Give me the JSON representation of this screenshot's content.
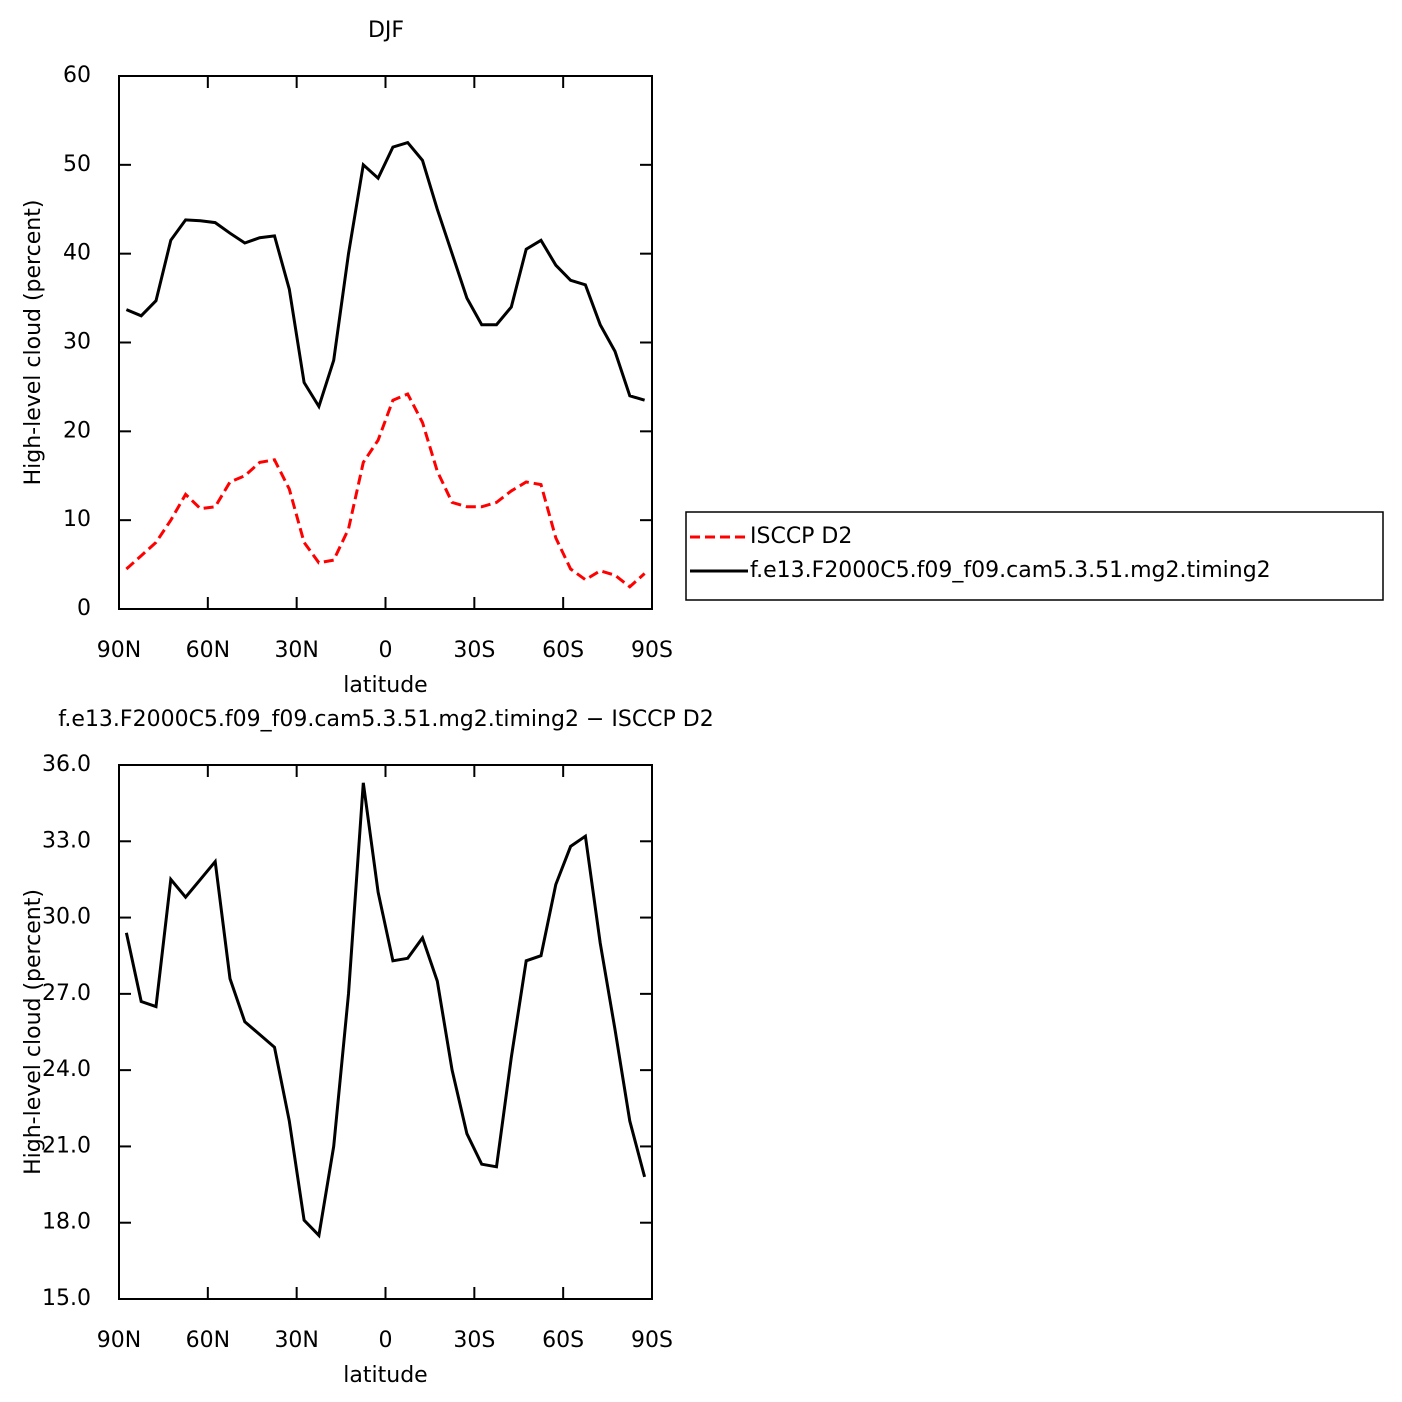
{
  "chart_data": [
    {
      "type": "line",
      "title": "DJF",
      "xlabel": "latitude",
      "ylabel": "High-level cloud (percent)",
      "x": [
        87.5,
        82.5,
        77.5,
        72.5,
        67.5,
        62.5,
        57.5,
        52.5,
        47.5,
        42.5,
        37.5,
        32.5,
        27.5,
        22.5,
        17.5,
        12.5,
        7.5,
        2.5,
        -2.5,
        -7.5,
        -12.5,
        -17.5,
        -22.5,
        -27.5,
        -32.5,
        -37.5,
        -42.5,
        -47.5,
        -52.5,
        -57.5,
        -62.5,
        -67.5,
        -72.5,
        -77.5,
        -82.5,
        -87.5
      ],
      "series": [
        {
          "name": "ISCCP D2",
          "color": "#ff0000",
          "line_style": "dashed",
          "values": [
            4.5,
            6,
            7.5,
            10,
            12.9,
            11.3,
            11.5,
            14.3,
            15,
            16.5,
            16.8,
            13.5,
            7.5,
            5.2,
            5.5,
            9,
            16.5,
            19,
            23.5,
            24.2,
            21,
            15.5,
            12,
            11.5,
            11.5,
            12,
            13.3,
            14.3,
            14,
            8,
            4.5,
            3.3,
            4.3,
            3.8,
            2.5,
            4
          ]
        },
        {
          "name": "f.e13.F2000C5.f09_f09.cam5.3.51.mg2.timing2",
          "color": "#000000",
          "line_style": "solid",
          "values": [
            33.7,
            33,
            34.7,
            41.5,
            43.8,
            43.7,
            43.5,
            42.3,
            41.2,
            41.8,
            42,
            36,
            25.5,
            22.8,
            28,
            40,
            50,
            48.5,
            52,
            52.5,
            50.5,
            45,
            40,
            35,
            32,
            32,
            34,
            40.5,
            41.5,
            38.7,
            37,
            36.5,
            32,
            29,
            24,
            23.5
          ]
        }
      ],
      "xlim": [
        90,
        -90
      ],
      "xticks": [
        {
          "value": 90,
          "label": "90N"
        },
        {
          "value": 60,
          "label": "60N"
        },
        {
          "value": 30,
          "label": "30N"
        },
        0,
        {
          "value": -30,
          "label": "30S"
        },
        {
          "value": -60,
          "label": "60S"
        },
        {
          "value": -90,
          "label": "90S"
        }
      ],
      "ylim": [
        0,
        60
      ],
      "yticks": [
        0,
        10,
        20,
        30,
        40,
        50,
        60
      ],
      "legend": "right"
    },
    {
      "type": "line",
      "title": "f.e13.F2000C5.f09_f09.cam5.3.51.mg2.timing2 − ISCCP D2",
      "xlabel": "latitude",
      "ylabel": "High-level cloud (percent)",
      "x": [
        87.5,
        82.5,
        77.5,
        72.5,
        67.5,
        62.5,
        57.5,
        52.5,
        47.5,
        42.5,
        37.5,
        32.5,
        27.5,
        22.5,
        17.5,
        12.5,
        7.5,
        2.5,
        -2.5,
        -7.5,
        -12.5,
        -17.5,
        -22.5,
        -27.5,
        -32.5,
        -37.5,
        -42.5,
        -47.5,
        -52.5,
        -57.5,
        -62.5,
        -67.5,
        -72.5,
        -77.5,
        -82.5,
        -87.5
      ],
      "series": [
        {
          "color": "#000000",
          "line_style": "solid",
          "values": [
            29.4,
            26.7,
            26.5,
            31.5,
            30.8,
            31.5,
            32.2,
            27.6,
            25.9,
            25.4,
            24.9,
            22,
            18.1,
            17.5,
            21,
            27,
            35.3,
            31,
            28.3,
            28.4,
            29.2,
            27.5,
            24,
            21.5,
            20.3,
            20.2,
            24.5,
            28.3,
            28.5,
            31.3,
            32.8,
            33.2,
            29,
            25.6,
            22,
            19.8
          ]
        }
      ],
      "xlim": [
        90,
        -90
      ],
      "xticks": [
        {
          "value": 90,
          "label": "90N"
        },
        {
          "value": 60,
          "label": "60N"
        },
        {
          "value": 30,
          "label": "30N"
        },
        0,
        {
          "value": -30,
          "label": "30S"
        },
        {
          "value": -60,
          "label": "60S"
        },
        {
          "value": -90,
          "label": "90S"
        }
      ],
      "ylim": [
        15,
        36
      ],
      "yticks": [
        {
          "value": 15,
          "label": "15.0"
        },
        {
          "value": 18,
          "label": "18.0"
        },
        {
          "value": 21,
          "label": "21.0"
        },
        {
          "value": 24,
          "label": "24.0"
        },
        {
          "value": 27,
          "label": "27.0"
        },
        {
          "value": 30,
          "label": "30.0"
        },
        {
          "value": 33,
          "label": "33.0"
        },
        {
          "value": 36,
          "label": "36.0"
        }
      ]
    }
  ]
}
